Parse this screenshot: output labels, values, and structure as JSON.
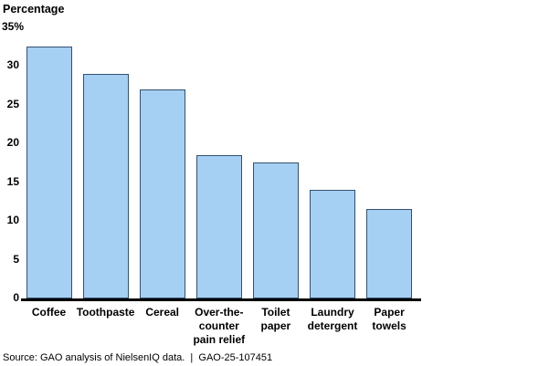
{
  "page": {
    "background": "#ffffff"
  },
  "chart": {
    "axis_title": "Percentage",
    "source_line": "Source: GAO analysis of NielsenIQ data.  |  GAO-25-107451",
    "colors": {
      "bar_fill": "#a5cff3",
      "bar_border": "#33516f",
      "axis": "#000000",
      "text": "#000000"
    }
  },
  "chart_data": {
    "type": "bar",
    "title": "",
    "ylabel": "Percentage",
    "categories": [
      "Coffee",
      "Toothpaste",
      "Cereal",
      "Over-the-counter pain relief",
      "Toilet paper",
      "Laundry detergent",
      "Paper towels"
    ],
    "category_label_lines": [
      "Coffee",
      "Toothpaste",
      "Cereal",
      "Over-the-\ncounter\npain relief",
      "Toilet\npaper",
      "Laundry\ndetergent",
      "Paper\ntowels"
    ],
    "values": [
      32.5,
      29,
      27,
      18.5,
      17.5,
      14,
      11.5
    ],
    "ylim": [
      0,
      35
    ],
    "ytick_values": [
      35,
      30,
      25,
      20,
      15,
      10,
      5,
      0
    ],
    "ytick_labels": [
      "35%",
      "30",
      "25",
      "20",
      "15",
      "10",
      "5",
      "0"
    ],
    "grid": false,
    "legend": false,
    "source": "Source: GAO analysis of NielsenIQ data.  |  GAO-25-107451"
  }
}
